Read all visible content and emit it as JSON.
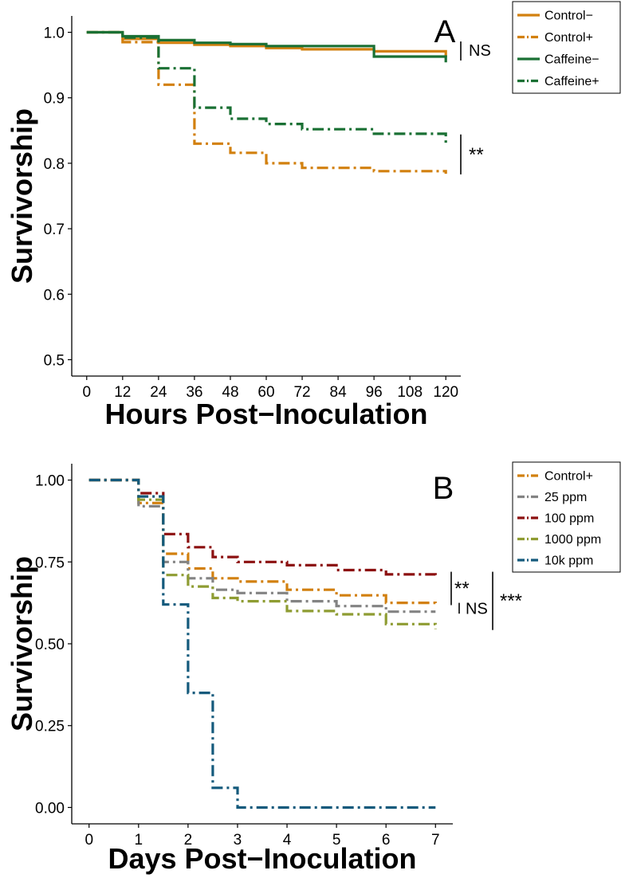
{
  "chart_data": [
    {
      "type": "line",
      "step": true,
      "panel_label": "A",
      "xlabel": "Hours Post−Inoculation",
      "ylabel": "Survivorship",
      "xlim": [
        -5,
        125
      ],
      "ylim": [
        0.475,
        1.025
      ],
      "xticks": [
        0,
        12,
        24,
        36,
        48,
        60,
        72,
        84,
        96,
        108,
        120
      ],
      "xtick_labels": [
        "0",
        "12",
        "24",
        "36",
        "48",
        "60",
        "72",
        "84",
        "96",
        "108",
        "120"
      ],
      "yticks": [
        0.5,
        0.6,
        0.7,
        0.8,
        0.9,
        1.0
      ],
      "ytick_labels": [
        "0.5",
        "0.6",
        "0.7",
        "0.8",
        "0.9",
        "1.0"
      ],
      "legend_position": "outside-top-right",
      "series": [
        {
          "name": "Control−",
          "color": "#D2800F",
          "dash": "solid",
          "x": [
            0,
            12,
            24,
            36,
            48,
            60,
            72,
            96,
            120
          ],
          "y": [
            1.0,
            0.99,
            0.984,
            0.981,
            0.979,
            0.976,
            0.974,
            0.971,
            0.962
          ]
        },
        {
          "name": "Control+",
          "color": "#D2800F",
          "dash": "dashdot",
          "x": [
            0,
            12,
            24,
            36,
            48,
            60,
            72,
            96,
            120
          ],
          "y": [
            1.0,
            0.985,
            0.92,
            0.83,
            0.816,
            0.8,
            0.793,
            0.788,
            0.784
          ]
        },
        {
          "name": "Caffeine−",
          "color": "#1A7034",
          "dash": "solid",
          "x": [
            0,
            12,
            24,
            36,
            48,
            60,
            96,
            120
          ],
          "y": [
            1.0,
            0.994,
            0.988,
            0.984,
            0.982,
            0.979,
            0.963,
            0.954
          ]
        },
        {
          "name": "Caffeine+",
          "color": "#1A7034",
          "dash": "dashdot",
          "x": [
            0,
            12,
            24,
            36,
            48,
            60,
            72,
            96,
            120
          ],
          "y": [
            1.0,
            0.992,
            0.945,
            0.885,
            0.868,
            0.86,
            0.852,
            0.845,
            0.828
          ]
        }
      ],
      "annotations": [
        {
          "text": "NS",
          "type": "bracket",
          "range": [
            0.962,
            0.97
          ]
        },
        {
          "text": "**",
          "type": "bracket",
          "range": [
            0.785,
            0.845
          ]
        }
      ]
    },
    {
      "type": "line",
      "step": true,
      "panel_label": "B",
      "xlabel": "Days Post−Inoculation",
      "ylabel": "Survivorship",
      "xlim": [
        -0.35,
        7.35
      ],
      "ylim": [
        -0.05,
        1.05
      ],
      "xticks": [
        0,
        1,
        2,
        3,
        4,
        5,
        6,
        7
      ],
      "xtick_labels": [
        "0",
        "1",
        "2",
        "3",
        "4",
        "5",
        "6",
        "7"
      ],
      "yticks": [
        0,
        0.25,
        0.5,
        0.75,
        1.0
      ],
      "ytick_labels": [
        "0.00",
        "0.25",
        "0.50",
        "0.75",
        "1.00"
      ],
      "legend_position": "outside-top-right",
      "series": [
        {
          "name": "Control+",
          "color": "#D2800F",
          "dash": "dashdot",
          "x": [
            0,
            1,
            1.5,
            2,
            2.5,
            3,
            4,
            5,
            6,
            7
          ],
          "y": [
            1.0,
            0.93,
            0.775,
            0.73,
            0.7,
            0.69,
            0.665,
            0.648,
            0.625,
            0.62
          ]
        },
        {
          "name": "25 ppm",
          "color": "#838383",
          "dash": "dashdot",
          "x": [
            0,
            1,
            1.5,
            2,
            2.5,
            3,
            4,
            5,
            6,
            7
          ],
          "y": [
            1.0,
            0.92,
            0.75,
            0.7,
            0.665,
            0.655,
            0.63,
            0.615,
            0.598,
            0.598
          ]
        },
        {
          "name": "100 ppm",
          "color": "#8C1010",
          "dash": "dashdot",
          "x": [
            0,
            1,
            1.5,
            2,
            2.5,
            3,
            4,
            5,
            6,
            7
          ],
          "y": [
            1.0,
            0.96,
            0.835,
            0.795,
            0.765,
            0.75,
            0.74,
            0.725,
            0.712,
            0.71
          ]
        },
        {
          "name": "1000 ppm",
          "color": "#8E9C32",
          "dash": "dashdot",
          "x": [
            0,
            1,
            1.5,
            2,
            2.5,
            3,
            4,
            5,
            6,
            7
          ],
          "y": [
            1.0,
            0.94,
            0.71,
            0.675,
            0.64,
            0.63,
            0.6,
            0.59,
            0.56,
            0.545
          ]
        },
        {
          "name": "10k ppm",
          "color": "#145A7C",
          "dash": "dashdot",
          "x": [
            0,
            1,
            1.5,
            2,
            2.5,
            3,
            7
          ],
          "y": [
            1.0,
            0.95,
            0.62,
            0.35,
            0.06,
            0.0,
            0.0
          ]
        }
      ],
      "annotations": [
        {
          "text": "**",
          "type": "bracket",
          "range": [
            0.625,
            0.712
          ]
        },
        {
          "text": "NS",
          "type": "bracket",
          "range": [
            0.6,
            0.625
          ]
        },
        {
          "text": "***",
          "type": "bracket",
          "range": [
            0.545,
            0.712
          ]
        }
      ]
    }
  ]
}
